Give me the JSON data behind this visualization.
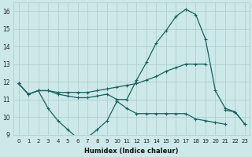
{
  "xlabel": "Humidex (Indice chaleur)",
  "x": [
    0,
    1,
    2,
    3,
    4,
    5,
    6,
    7,
    8,
    9,
    10,
    11,
    12,
    13,
    14,
    15,
    16,
    17,
    18,
    19,
    20,
    21,
    22,
    23
  ],
  "lines": [
    [
      11.9,
      11.3,
      11.5,
      11.5,
      11.4,
      11.4,
      11.4,
      11.4,
      11.5,
      11.6,
      11.7,
      11.8,
      11.9,
      12.1,
      12.3,
      12.6,
      12.8,
      13.0,
      13.0,
      13.0,
      null,
      null,
      null,
      null
    ],
    [
      11.9,
      11.3,
      11.5,
      11.5,
      11.3,
      11.2,
      11.1,
      11.1,
      11.2,
      11.3,
      11.0,
      11.0,
      12.1,
      13.1,
      14.2,
      14.9,
      15.7,
      16.1,
      15.8,
      14.4,
      11.5,
      10.5,
      10.3,
      9.6
    ],
    [
      11.9,
      11.3,
      11.5,
      10.5,
      9.8,
      9.3,
      8.8,
      8.85,
      9.3,
      9.8,
      10.9,
      10.5,
      10.2,
      10.2,
      10.2,
      10.2,
      10.2,
      10.2,
      9.9,
      9.8,
      9.7,
      9.6,
      null,
      null
    ],
    [
      null,
      null,
      null,
      null,
      null,
      null,
      null,
      null,
      null,
      null,
      null,
      null,
      null,
      null,
      null,
      null,
      null,
      null,
      null,
      null,
      null,
      10.4,
      10.3,
      9.6
    ]
  ],
  "bg_color": "#cce8e8",
  "grid_color": "#aacccc",
  "line_color": "#1a6060",
  "ylim": [
    9,
    16.5
  ],
  "yticks": [
    9,
    10,
    11,
    12,
    13,
    14,
    15,
    16
  ],
  "xticks": [
    0,
    1,
    2,
    3,
    4,
    5,
    6,
    7,
    8,
    9,
    10,
    11,
    12,
    13,
    14,
    15,
    16,
    17,
    18,
    19,
    20,
    21,
    22,
    23
  ]
}
